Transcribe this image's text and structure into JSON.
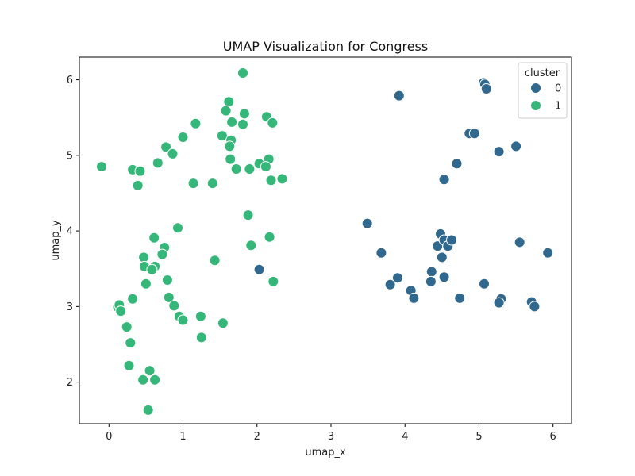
{
  "chart_data": {
    "type": "scatter",
    "title": "UMAP Visualization for Congress",
    "xlabel": "umap_x",
    "ylabel": "umap_y",
    "xlim": [
      -0.4,
      6.25
    ],
    "ylim": [
      1.45,
      6.3
    ],
    "xticks": [
      0,
      1,
      2,
      3,
      4,
      5,
      6
    ],
    "yticks": [
      2,
      3,
      4,
      5,
      6
    ],
    "grid": false,
    "legend": {
      "title": "cluster",
      "placement": "top-right"
    },
    "series": [
      {
        "name": "0",
        "color": "#31688e",
        "points": [
          [
            3.92,
            5.79
          ],
          [
            5.06,
            5.96
          ],
          [
            5.08,
            5.94
          ],
          [
            5.1,
            5.88
          ],
          [
            4.87,
            5.29
          ],
          [
            4.94,
            5.29
          ],
          [
            5.27,
            5.05
          ],
          [
            5.5,
            5.12
          ],
          [
            4.7,
            4.89
          ],
          [
            4.53,
            4.68
          ],
          [
            3.49,
            4.1
          ],
          [
            4.48,
            3.96
          ],
          [
            4.44,
            3.8
          ],
          [
            4.53,
            3.88
          ],
          [
            4.58,
            3.8
          ],
          [
            4.63,
            3.88
          ],
          [
            4.5,
            3.65
          ],
          [
            5.55,
            3.85
          ],
          [
            5.93,
            3.71
          ],
          [
            3.68,
            3.71
          ],
          [
            3.9,
            3.38
          ],
          [
            4.36,
            3.46
          ],
          [
            4.35,
            3.33
          ],
          [
            4.53,
            3.39
          ],
          [
            3.8,
            3.29
          ],
          [
            5.07,
            3.3
          ],
          [
            4.08,
            3.21
          ],
          [
            4.12,
            3.11
          ],
          [
            4.74,
            3.11
          ],
          [
            5.3,
            3.1
          ],
          [
            5.27,
            3.05
          ],
          [
            5.71,
            3.06
          ],
          [
            5.75,
            3.0
          ],
          [
            2.03,
            3.49
          ]
        ]
      },
      {
        "name": "1",
        "color": "#35b779",
        "points": [
          [
            1.81,
            6.09
          ],
          [
            1.62,
            5.71
          ],
          [
            1.58,
            5.59
          ],
          [
            1.83,
            5.55
          ],
          [
            1.66,
            5.44
          ],
          [
            1.81,
            5.41
          ],
          [
            2.13,
            5.51
          ],
          [
            2.21,
            5.43
          ],
          [
            1.17,
            5.42
          ],
          [
            1.53,
            5.26
          ],
          [
            1.65,
            5.2
          ],
          [
            1.63,
            5.12
          ],
          [
            1.0,
            5.24
          ],
          [
            0.77,
            5.11
          ],
          [
            0.86,
            5.02
          ],
          [
            1.64,
            4.95
          ],
          [
            0.66,
            4.9
          ],
          [
            2.16,
            4.95
          ],
          [
            2.03,
            4.89
          ],
          [
            2.12,
            4.85
          ],
          [
            1.72,
            4.82
          ],
          [
            1.9,
            4.82
          ],
          [
            -0.1,
            4.85
          ],
          [
            0.32,
            4.81
          ],
          [
            0.42,
            4.79
          ],
          [
            1.14,
            4.63
          ],
          [
            1.4,
            4.63
          ],
          [
            2.19,
            4.67
          ],
          [
            2.34,
            4.69
          ],
          [
            0.39,
            4.6
          ],
          [
            1.88,
            4.21
          ],
          [
            0.93,
            4.04
          ],
          [
            2.17,
            3.92
          ],
          [
            0.61,
            3.91
          ],
          [
            1.92,
            3.81
          ],
          [
            0.75,
            3.78
          ],
          [
            0.72,
            3.69
          ],
          [
            0.47,
            3.65
          ],
          [
            1.43,
            3.61
          ],
          [
            0.48,
            3.53
          ],
          [
            0.62,
            3.53
          ],
          [
            0.58,
            3.49
          ],
          [
            0.79,
            3.35
          ],
          [
            2.22,
            3.33
          ],
          [
            0.5,
            3.3
          ],
          [
            0.81,
            3.12
          ],
          [
            0.32,
            3.1
          ],
          [
            0.88,
            3.01
          ],
          [
            0.12,
            2.99
          ],
          [
            0.14,
            3.02
          ],
          [
            0.16,
            2.94
          ],
          [
            0.95,
            2.87
          ],
          [
            1.24,
            2.87
          ],
          [
            1.0,
            2.82
          ],
          [
            1.54,
            2.78
          ],
          [
            0.24,
            2.73
          ],
          [
            1.25,
            2.59
          ],
          [
            0.29,
            2.52
          ],
          [
            0.27,
            2.22
          ],
          [
            0.55,
            2.15
          ],
          [
            0.46,
            2.03
          ],
          [
            0.62,
            2.03
          ],
          [
            0.53,
            1.63
          ]
        ]
      }
    ]
  }
}
